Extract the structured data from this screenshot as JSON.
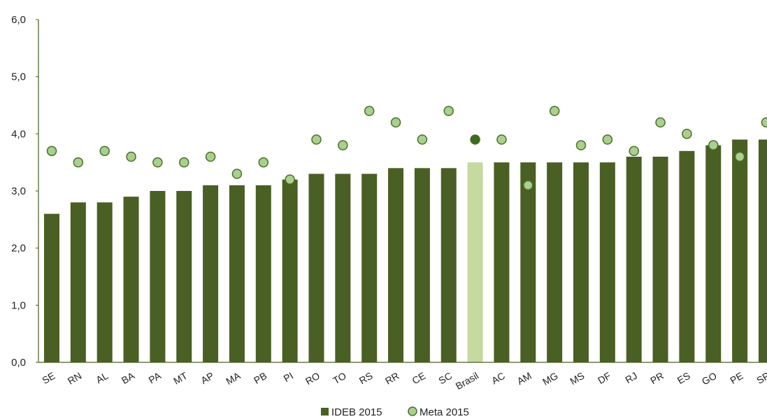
{
  "chart_data": {
    "type": "bar",
    "categories": [
      "SE",
      "RN",
      "AL",
      "BA",
      "PA",
      "MT",
      "AP",
      "MA",
      "PB",
      "PI",
      "RO",
      "TO",
      "RS",
      "RR",
      "CE",
      "SC",
      "Brasil",
      "AC",
      "AM",
      "MG",
      "MS",
      "DF",
      "RJ",
      "PR",
      "ES",
      "GO",
      "PE",
      "SP"
    ],
    "series": [
      {
        "name": "IDEB 2015",
        "kind": "bar",
        "color": "#4a5f23",
        "highlight_color": "#c5d9a0",
        "values": [
          2.6,
          2.8,
          2.8,
          2.9,
          3.0,
          3.0,
          3.1,
          3.1,
          3.1,
          3.2,
          3.3,
          3.3,
          3.3,
          3.4,
          3.4,
          3.4,
          3.5,
          3.5,
          3.5,
          3.5,
          3.5,
          3.5,
          3.6,
          3.6,
          3.7,
          3.8,
          3.9,
          3.9
        ]
      },
      {
        "name": "Meta 2015",
        "kind": "marker",
        "color": "#a9d08e",
        "edge_color": "#4a6e28",
        "highlight_color": "#3e6b1e",
        "values": [
          3.7,
          3.5,
          3.7,
          3.6,
          3.5,
          3.5,
          3.6,
          3.3,
          3.5,
          3.2,
          3.9,
          3.8,
          4.4,
          4.2,
          3.9,
          4.4,
          3.9,
          3.9,
          3.1,
          4.4,
          3.8,
          3.9,
          3.7,
          4.2,
          4.0,
          3.8,
          3.6,
          4.2
        ]
      }
    ],
    "highlight_category": "Brasil",
    "yticks": [
      "0,0",
      "1,0",
      "2,0",
      "3,0",
      "4,0",
      "5,0",
      "6,0"
    ],
    "ylim": [
      0,
      6
    ],
    "grid": false,
    "legend_position": "bottom-center",
    "title": "",
    "xlabel": "",
    "ylabel": ""
  }
}
